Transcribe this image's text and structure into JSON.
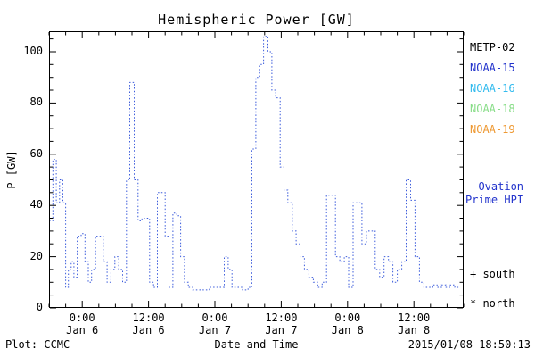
{
  "chart_data": {
    "type": "line",
    "subtype": "dotted-step",
    "title": "Hemispheric Power [GW]",
    "xlabel": "Date and Time",
    "ylabel": "P [GW]",
    "ylim": [
      0,
      108
    ],
    "xlim_hours_from_jan6": [
      -6,
      69
    ],
    "yticks": [
      0,
      20,
      40,
      60,
      80,
      100
    ],
    "xticks": [
      {
        "t": 0,
        "time": "0:00",
        "date": "Jan 6"
      },
      {
        "t": 12,
        "time": "12:00",
        "date": "Jan 6"
      },
      {
        "t": 24,
        "time": "0:00",
        "date": "Jan 7"
      },
      {
        "t": 36,
        "time": "12:00",
        "date": "Jan 7"
      },
      {
        "t": 48,
        "time": "0:00",
        "date": "Jan 8"
      },
      {
        "t": 60,
        "time": "12:00",
        "date": "Jan 8"
      }
    ],
    "line_color": "#3b5bdb",
    "grid": false,
    "x_unit": "hours from 2015-01-06 00:00 UT",
    "series": [
      {
        "name": "Ovation Prime HPI",
        "points": [
          [
            -6.0,
            34
          ],
          [
            -5.3,
            58
          ],
          [
            -4.7,
            41
          ],
          [
            -4.1,
            50
          ],
          [
            -3.5,
            41
          ],
          [
            -3.0,
            8
          ],
          [
            -2.5,
            15
          ],
          [
            -2.0,
            18
          ],
          [
            -1.5,
            12
          ],
          [
            -0.9,
            28
          ],
          [
            -0.2,
            29
          ],
          [
            0.5,
            18
          ],
          [
            1.1,
            10
          ],
          [
            1.7,
            15
          ],
          [
            2.4,
            28
          ],
          [
            3.1,
            28
          ],
          [
            3.8,
            18
          ],
          [
            4.5,
            10
          ],
          [
            5.2,
            15
          ],
          [
            5.9,
            20
          ],
          [
            6.6,
            15
          ],
          [
            7.3,
            10
          ],
          [
            8.0,
            50
          ],
          [
            8.6,
            88
          ],
          [
            9.4,
            50
          ],
          [
            10.1,
            34
          ],
          [
            10.8,
            35
          ],
          [
            11.5,
            35
          ],
          [
            12.2,
            10
          ],
          [
            12.9,
            8
          ],
          [
            13.6,
            45
          ],
          [
            14.3,
            45
          ],
          [
            15.0,
            28
          ],
          [
            15.7,
            8
          ],
          [
            16.4,
            37
          ],
          [
            17.1,
            36
          ],
          [
            17.8,
            20
          ],
          [
            18.5,
            10
          ],
          [
            19.2,
            8
          ],
          [
            20.0,
            7
          ],
          [
            21.0,
            7
          ],
          [
            22.0,
            7
          ],
          [
            23.0,
            8
          ],
          [
            24.0,
            8
          ],
          [
            25.0,
            8
          ],
          [
            25.7,
            20
          ],
          [
            26.4,
            15
          ],
          [
            27.1,
            8
          ],
          [
            28.0,
            8
          ],
          [
            29.0,
            7
          ],
          [
            30.0,
            8
          ],
          [
            30.7,
            62
          ],
          [
            31.4,
            90
          ],
          [
            32.1,
            95
          ],
          [
            32.8,
            106
          ],
          [
            33.6,
            100
          ],
          [
            34.3,
            85
          ],
          [
            35.0,
            82
          ],
          [
            35.8,
            55
          ],
          [
            36.5,
            46
          ],
          [
            37.2,
            41
          ],
          [
            38.0,
            30
          ],
          [
            38.7,
            25
          ],
          [
            39.4,
            20
          ],
          [
            40.2,
            15
          ],
          [
            41.0,
            12
          ],
          [
            41.8,
            10
          ],
          [
            42.6,
            8
          ],
          [
            43.4,
            10
          ],
          [
            44.2,
            44
          ],
          [
            45.0,
            44
          ],
          [
            45.8,
            20
          ],
          [
            46.6,
            18
          ],
          [
            47.4,
            20
          ],
          [
            48.2,
            8
          ],
          [
            49.0,
            41
          ],
          [
            49.8,
            41
          ],
          [
            50.6,
            25
          ],
          [
            51.4,
            30
          ],
          [
            52.2,
            30
          ],
          [
            53.0,
            15
          ],
          [
            53.8,
            12
          ],
          [
            54.6,
            20
          ],
          [
            55.4,
            18
          ],
          [
            56.2,
            10
          ],
          [
            57.0,
            15
          ],
          [
            57.8,
            18
          ],
          [
            58.6,
            50
          ],
          [
            59.4,
            42
          ],
          [
            60.2,
            20
          ],
          [
            61.0,
            10
          ],
          [
            61.8,
            8
          ],
          [
            62.6,
            8
          ],
          [
            63.4,
            9
          ],
          [
            64.2,
            8
          ],
          [
            65.0,
            9
          ],
          [
            65.8,
            8
          ],
          [
            66.6,
            9
          ],
          [
            67.4,
            8
          ]
        ]
      }
    ]
  },
  "legend": {
    "satellites": [
      {
        "label": "METP-02",
        "color": "#000000"
      },
      {
        "label": "NOAA-15",
        "color": "#2233cc"
      },
      {
        "label": "NOAA-16",
        "color": "#33bbee"
      },
      {
        "label": "NOAA-18",
        "color": "#88dd88"
      },
      {
        "label": "NOAA-19",
        "color": "#ee9933"
      }
    ],
    "ovation_line1": "— Ovation",
    "ovation_line2": "Prime HPI",
    "south_marker": "+ south",
    "north_marker": "* north"
  },
  "footer": {
    "plot_credit": "Plot: CCMC",
    "timestamp": "2015/01/08 18:50:13"
  }
}
